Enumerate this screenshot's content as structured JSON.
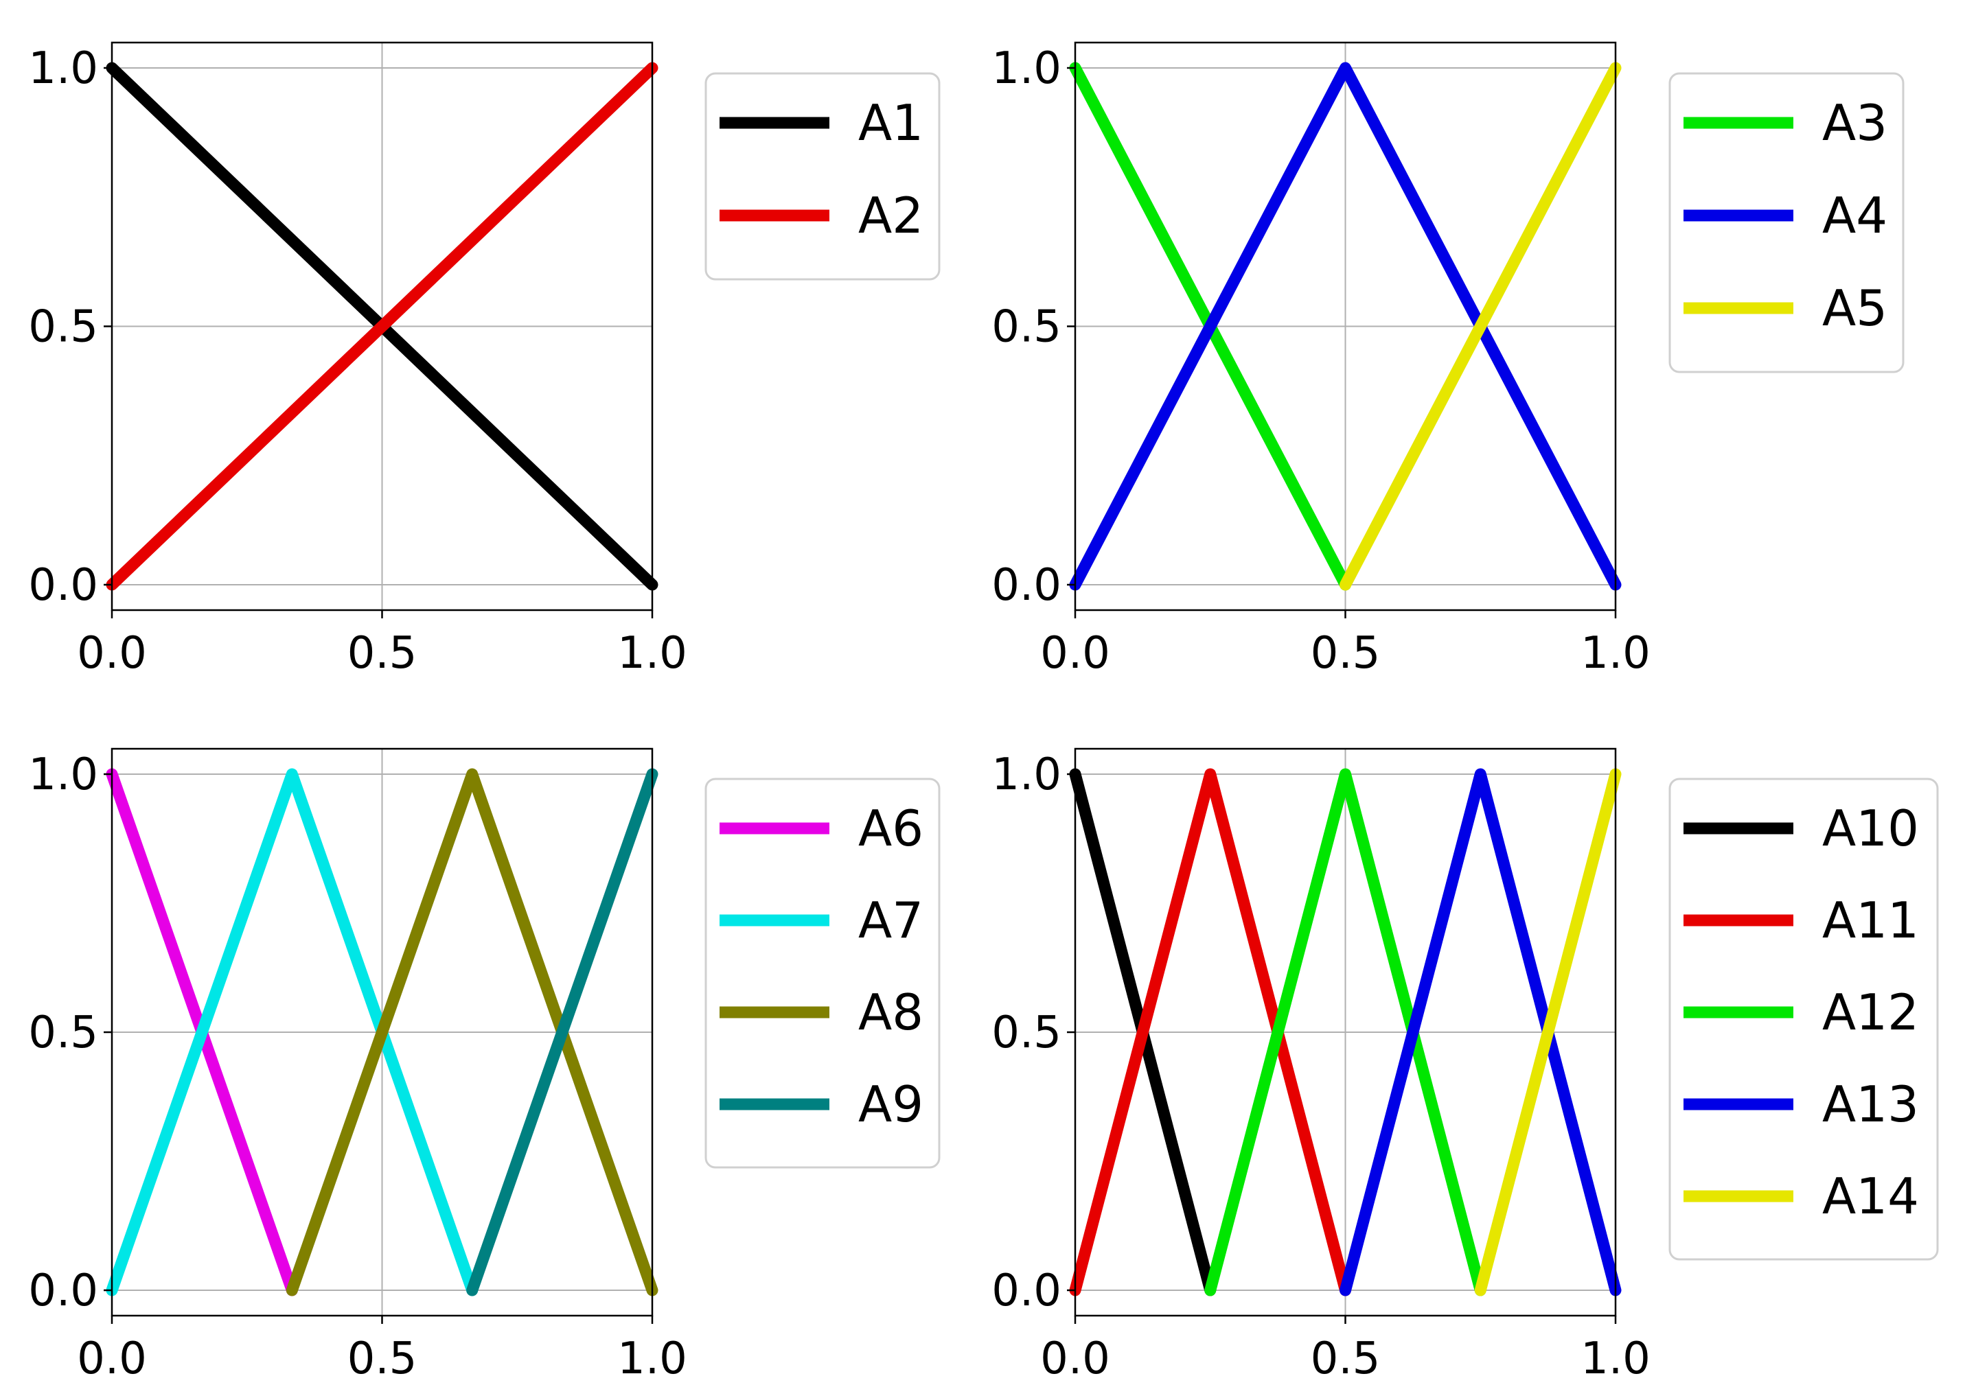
{
  "chart_data": [
    {
      "type": "line",
      "xlim": [
        0.0,
        1.0
      ],
      "ylim": [
        0.0,
        1.0
      ],
      "grid": true,
      "legend_position": "outside-right",
      "x_ticks": [
        "0.0",
        "0.5",
        "1.0"
      ],
      "y_ticks": [
        "0.0",
        "0.5",
        "1.0"
      ],
      "series": [
        {
          "name": "A1",
          "color": "#000000",
          "x": [
            0,
            1
          ],
          "y": [
            1,
            0
          ]
        },
        {
          "name": "A2",
          "color": "#e60000",
          "x": [
            0,
            1
          ],
          "y": [
            0,
            1
          ]
        }
      ]
    },
    {
      "type": "line",
      "xlim": [
        0.0,
        1.0
      ],
      "ylim": [
        0.0,
        1.0
      ],
      "grid": true,
      "legend_position": "outside-right",
      "x_ticks": [
        "0.0",
        "0.5",
        "1.0"
      ],
      "y_ticks": [
        "0.0",
        "0.5",
        "1.0"
      ],
      "series": [
        {
          "name": "A3",
          "color": "#00e600",
          "x": [
            0,
            0.5
          ],
          "y": [
            1,
            0
          ]
        },
        {
          "name": "A4",
          "color": "#0000e6",
          "x": [
            0,
            0.5,
            1
          ],
          "y": [
            0,
            1,
            0
          ]
        },
        {
          "name": "A5",
          "color": "#e6e600",
          "x": [
            0.5,
            1
          ],
          "y": [
            0,
            1
          ]
        }
      ]
    },
    {
      "type": "line",
      "xlim": [
        0.0,
        1.0
      ],
      "ylim": [
        0.0,
        1.0
      ],
      "grid": true,
      "legend_position": "outside-right",
      "x_ticks": [
        "0.0",
        "0.5",
        "1.0"
      ],
      "y_ticks": [
        "0.0",
        "0.5",
        "1.0"
      ],
      "series": [
        {
          "name": "A6",
          "color": "#e600e6",
          "x": [
            0,
            0.3333
          ],
          "y": [
            1,
            0
          ]
        },
        {
          "name": "A7",
          "color": "#00e6e6",
          "x": [
            0,
            0.3333,
            0.6667
          ],
          "y": [
            0,
            1,
            0
          ]
        },
        {
          "name": "A8",
          "color": "#808000",
          "x": [
            0.3333,
            0.6667,
            1
          ],
          "y": [
            0,
            1,
            0
          ]
        },
        {
          "name": "A9",
          "color": "#008080",
          "x": [
            0.6667,
            1
          ],
          "y": [
            0,
            1
          ]
        }
      ]
    },
    {
      "type": "line",
      "xlim": [
        0.0,
        1.0
      ],
      "ylim": [
        0.0,
        1.0
      ],
      "grid": true,
      "legend_position": "outside-right",
      "x_ticks": [
        "0.0",
        "0.5",
        "1.0"
      ],
      "y_ticks": [
        "0.0",
        "0.5",
        "1.0"
      ],
      "series": [
        {
          "name": "A10",
          "color": "#000000",
          "x": [
            0,
            0.25
          ],
          "y": [
            1,
            0
          ]
        },
        {
          "name": "A11",
          "color": "#e60000",
          "x": [
            0,
            0.25,
            0.5
          ],
          "y": [
            0,
            1,
            0
          ]
        },
        {
          "name": "A12",
          "color": "#00e600",
          "x": [
            0.25,
            0.5,
            0.75
          ],
          "y": [
            0,
            1,
            0
          ]
        },
        {
          "name": "A13",
          "color": "#0000e6",
          "x": [
            0.5,
            0.75,
            1
          ],
          "y": [
            0,
            1,
            0
          ]
        },
        {
          "name": "A14",
          "color": "#e6e600",
          "x": [
            0.75,
            1
          ],
          "y": [
            0,
            1
          ]
        }
      ]
    }
  ]
}
